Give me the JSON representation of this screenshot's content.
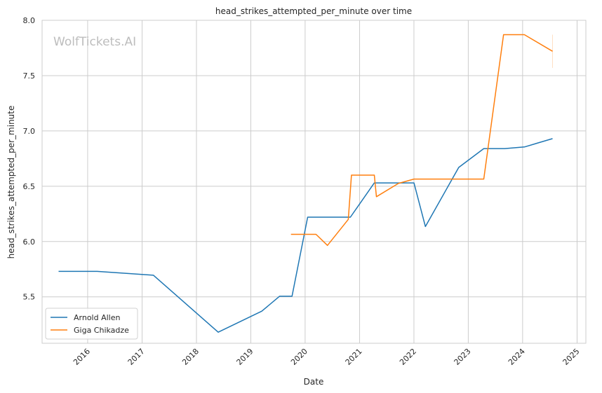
{
  "chart_data": {
    "type": "line",
    "title": "head_strikes_attempted_per_minute over time",
    "xlabel": "Date",
    "ylabel": "head_strikes_attempted_per_minute",
    "watermark": "WolfTickets.AI",
    "x_ticks": [
      "2016",
      "2017",
      "2018",
      "2019",
      "2020",
      "2021",
      "2022",
      "2023",
      "2024",
      "2025"
    ],
    "y_ticks": [
      "5.5",
      "6.0",
      "6.5",
      "7.0",
      "7.5",
      "8.0"
    ],
    "xlim": [
      "2015-03-01",
      "2025-03-01"
    ],
    "ylim": [
      5.08,
      8.0
    ],
    "grid": true,
    "legend_position": "lower-left",
    "series": [
      {
        "name": "Arnold Allen",
        "color": "#1f77b4",
        "points": [
          [
            "2015-06-20",
            5.73
          ],
          [
            "2016-03-05",
            5.73
          ],
          [
            "2017-03-18",
            5.695
          ],
          [
            "2018-05-27",
            5.18
          ],
          [
            "2019-03-16",
            5.37
          ],
          [
            "2019-07-13",
            5.505
          ],
          [
            "2019-10-05",
            5.505
          ],
          [
            "2020-01-18",
            6.22
          ],
          [
            "2020-10-31",
            6.22
          ],
          [
            "2021-04-10",
            6.53
          ],
          [
            "2022-01-01",
            6.53
          ],
          [
            "2022-03-19",
            6.135
          ],
          [
            "2022-10-29",
            6.67
          ],
          [
            "2023-04-15",
            6.84
          ],
          [
            "2023-09-02",
            6.84
          ],
          [
            "2024-01-13",
            6.855
          ],
          [
            "2024-07-20",
            6.93
          ]
        ]
      },
      {
        "name": "Giga Chikadze",
        "color": "#ff7f0e",
        "points": [
          [
            "2019-09-28",
            6.065
          ],
          [
            "2020-03-14",
            6.065
          ],
          [
            "2020-05-30",
            5.965
          ],
          [
            "2020-10-17",
            6.2
          ],
          [
            "2020-11-07",
            6.6
          ],
          [
            "2021-04-10",
            6.6
          ],
          [
            "2021-04-24",
            6.405
          ],
          [
            "2021-09-18",
            6.525
          ],
          [
            "2022-01-01",
            6.565
          ],
          [
            "2023-04-15",
            6.565
          ],
          [
            "2023-08-26",
            7.87
          ],
          [
            "2024-01-13",
            7.87
          ],
          [
            "2024-07-20",
            7.72
          ]
        ],
        "error_bar": {
          "x": "2024-07-20",
          "low": 7.57,
          "high": 7.87
        }
      }
    ]
  }
}
